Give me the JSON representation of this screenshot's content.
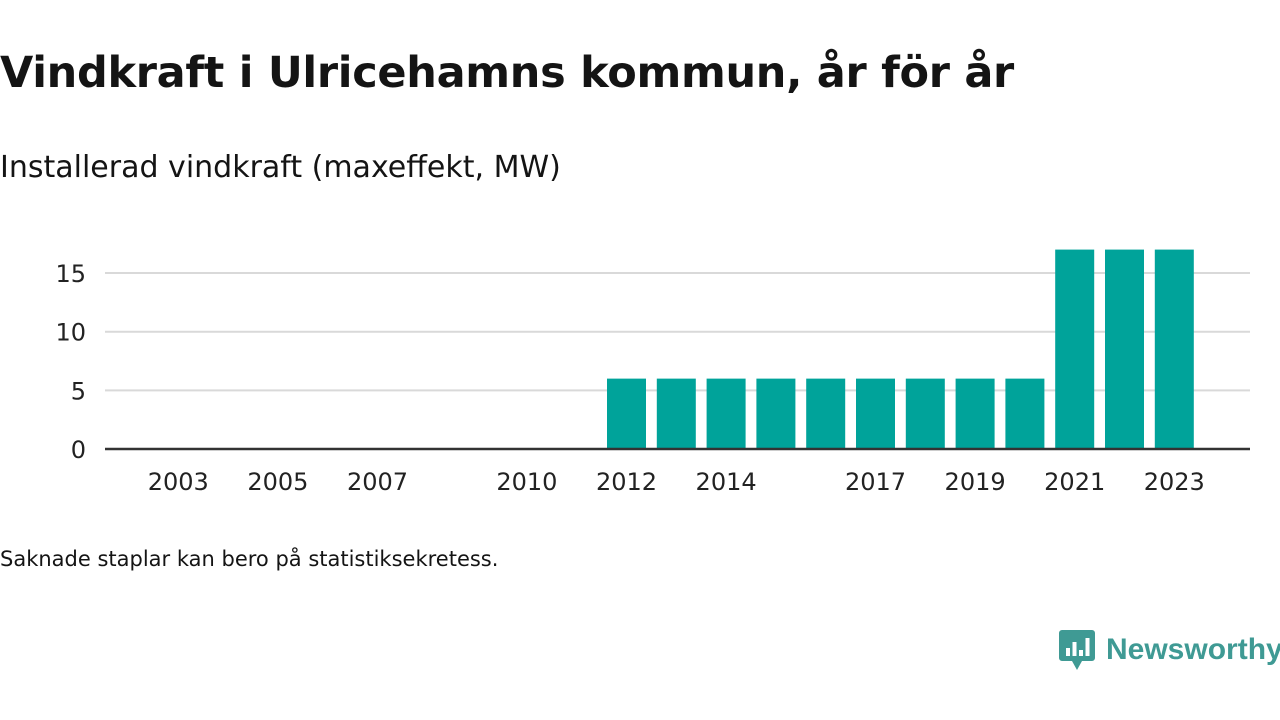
{
  "title": "Vindkraft i Ulricehamns kommun, år för år",
  "subtitle": "Installerad vindkraft (maxeffekt, MW)",
  "footnote": "Saknade staplar kan bero på statistiksekretess.",
  "brand": {
    "name": "Newsworthy",
    "icon": "newsworthy-logo-icon",
    "color": "#3f9a94"
  },
  "chart_data": {
    "type": "bar",
    "categories": [
      "2002",
      "2003",
      "2004",
      "2005",
      "2006",
      "2007",
      "2008",
      "2009",
      "2010",
      "2011",
      "2012",
      "2013",
      "2014",
      "2015",
      "2016",
      "2017",
      "2018",
      "2019",
      "2020",
      "2021",
      "2022",
      "2023"
    ],
    "values": [
      0,
      0,
      0,
      0,
      0,
      0,
      0,
      0,
      0,
      0,
      6,
      6,
      6,
      6,
      6,
      6,
      6,
      6,
      6,
      17,
      17,
      17
    ],
    "x_tick_labels": [
      "2003",
      "2005",
      "2007",
      "2010",
      "2012",
      "2014",
      "2017",
      "2019",
      "2021",
      "2023"
    ],
    "y_ticks": [
      0,
      5,
      10,
      15
    ],
    "ylim": [
      0,
      17
    ],
    "grid": true,
    "bar_color": "#00a39a",
    "xlabel": "",
    "ylabel": ""
  }
}
